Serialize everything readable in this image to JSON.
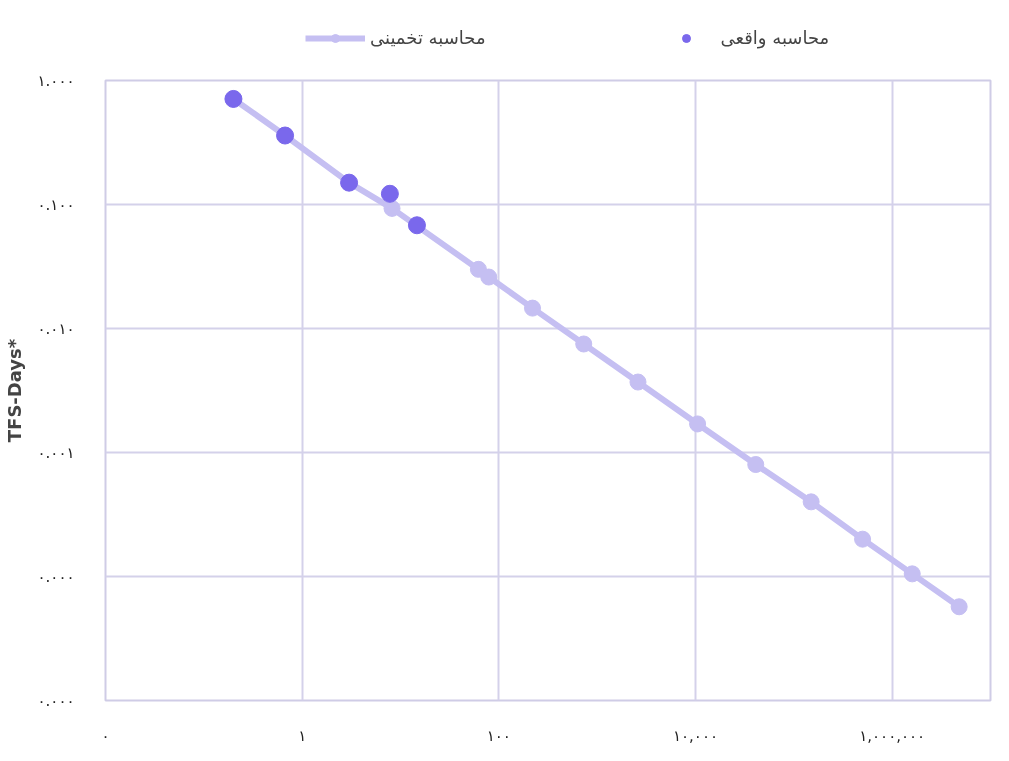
{
  "chart_data": {
    "type": "line",
    "ylabel": "TFS-Days*",
    "log": "xy",
    "grid": true,
    "legend": "top",
    "marker": "circle",
    "xlim": [
      0.01,
      10000000
    ],
    "ylim": [
      1e-05,
      1
    ],
    "xticks": [
      {
        "value": 0.01,
        "label": "۰"
      },
      {
        "value": 1,
        "label": "۱"
      },
      {
        "value": 100,
        "label": "۱۰۰"
      },
      {
        "value": 10000,
        "label": "۱۰,۰۰۰"
      },
      {
        "value": 1000000,
        "label": "۱,۰۰۰,۰۰۰"
      }
    ],
    "yticks": [
      {
        "value": 1,
        "label": "۱.۰۰۰"
      },
      {
        "value": 0.1,
        "label": "۰.۱۰۰"
      },
      {
        "value": 0.01,
        "label": "۰.۰۱۰"
      },
      {
        "value": 0.001,
        "label": "۰.۰۰۱"
      },
      {
        "value": 0.0001,
        "label": "۰.۰۰۰"
      },
      {
        "value": 1e-05,
        "label": "۰.۰۰۰"
      }
    ],
    "series": [
      {
        "name": "محاسبه تخمینی",
        "color": "#c5bff2",
        "x": [
          0.2,
          0.67,
          3.0,
          8.2,
          62,
          79,
          220,
          730,
          2600,
          10500,
          41000,
          150000,
          500000,
          1600000,
          4800000
        ],
        "values": [
          0.71,
          0.36,
          0.15,
          0.093,
          0.03,
          0.026,
          0.0146,
          0.0075,
          0.0037,
          0.0017,
          0.0008,
          0.0004,
          0.0002,
          0.000105,
          5.7e-05
        ]
      },
      {
        "name": "محاسبه واقعی",
        "type": "scatter",
        "color": "#7a68ec",
        "x": [
          0.2,
          0.67,
          3.0,
          7.8,
          14.7
        ],
        "values": [
          0.71,
          0.36,
          0.15,
          0.122,
          0.068
        ]
      }
    ]
  }
}
